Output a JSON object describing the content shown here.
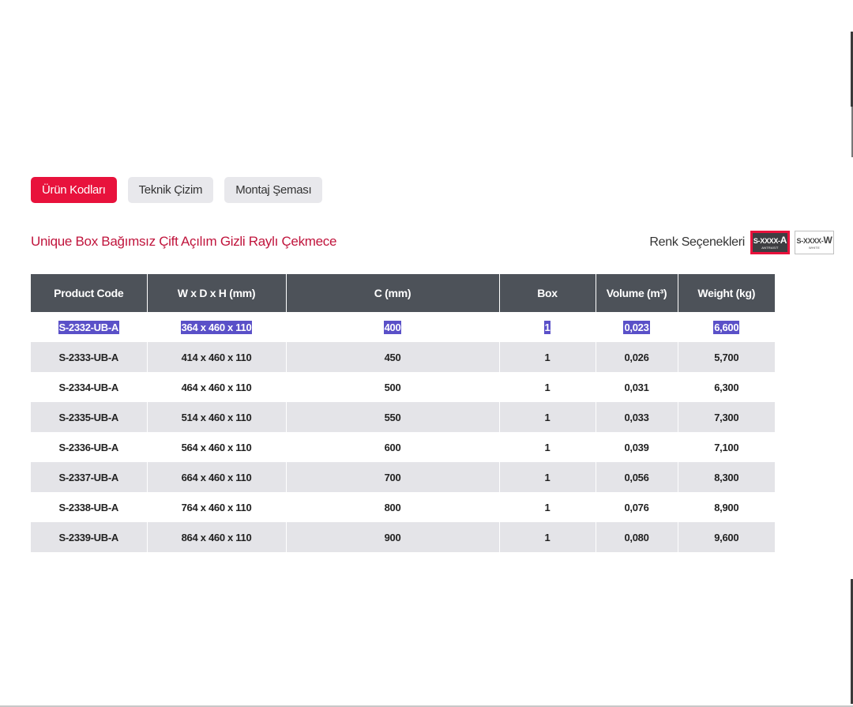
{
  "tabs": [
    {
      "label": "Ürün Kodları",
      "active": true
    },
    {
      "label": "Teknik Çizim",
      "active": false
    },
    {
      "label": "Montaj Şeması",
      "active": false
    }
  ],
  "product_title": "Unique Box Bağımsız Çift Açılım Gizli Raylı Çekmece",
  "color_options": {
    "label": "Renk Seçenekleri",
    "swatches": [
      {
        "code_prefix": "S-XXXX-",
        "code_suffix": "A",
        "sub": "ANTRASİT",
        "selected": true
      },
      {
        "code_prefix": "S-XXXX-",
        "code_suffix": "W",
        "sub": "WHITE",
        "selected": false
      }
    ]
  },
  "table": {
    "headers": [
      "Product Code",
      "W x D x H (mm)",
      "C (mm)",
      "Box",
      "Volume (m³)",
      "Weight (kg)"
    ],
    "rows": [
      [
        "S-2332-UB-A",
        "364 x 460 x 110",
        "400",
        "1",
        "0,023",
        "6,600"
      ],
      [
        "S-2333-UB-A",
        "414 x 460 x 110",
        "450",
        "1",
        "0,026",
        "5,700"
      ],
      [
        "S-2334-UB-A",
        "464 x 460 x 110",
        "500",
        "1",
        "0,031",
        "6,300"
      ],
      [
        "S-2335-UB-A",
        "514 x 460 x 110",
        "550",
        "1",
        "0,033",
        "7,300"
      ],
      [
        "S-2336-UB-A",
        "564 x 460 x 110",
        "600",
        "1",
        "0,039",
        "7,100"
      ],
      [
        "S-2337-UB-A",
        "664 x 460 x 110",
        "700",
        "1",
        "0,056",
        "8,300"
      ],
      [
        "S-2338-UB-A",
        "764 x 460 x 110",
        "800",
        "1",
        "0,076",
        "8,900"
      ],
      [
        "S-2339-UB-A",
        "864 x 460 x 110",
        "900",
        "1",
        "0,080",
        "9,600"
      ]
    ],
    "selected_row": 0
  },
  "colors": {
    "accent": "#e8123c",
    "title": "#c0143c",
    "header_bg": "#4d5259",
    "row_alt": "#e4e4e8",
    "selection": "#5a50c8"
  }
}
